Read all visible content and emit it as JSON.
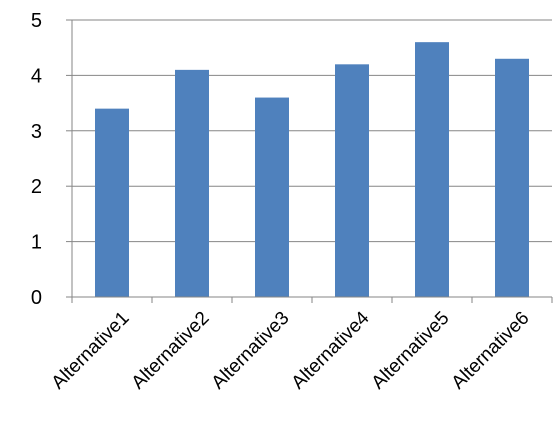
{
  "chart_data": {
    "type": "bar",
    "categories": [
      "Alternative1",
      "Alternative2",
      "Alternative3",
      "Alternative4",
      "Alternative5",
      "Alternative6"
    ],
    "values": [
      3.4,
      4.1,
      3.6,
      4.2,
      4.6,
      4.3
    ],
    "ylim": [
      0,
      5
    ],
    "yticks": [
      "0",
      "1",
      "2",
      "3",
      "4",
      "5"
    ],
    "grid": true,
    "bar_color": "#4f81bd",
    "grid_color": "#868686",
    "axis_color": "#868686"
  }
}
